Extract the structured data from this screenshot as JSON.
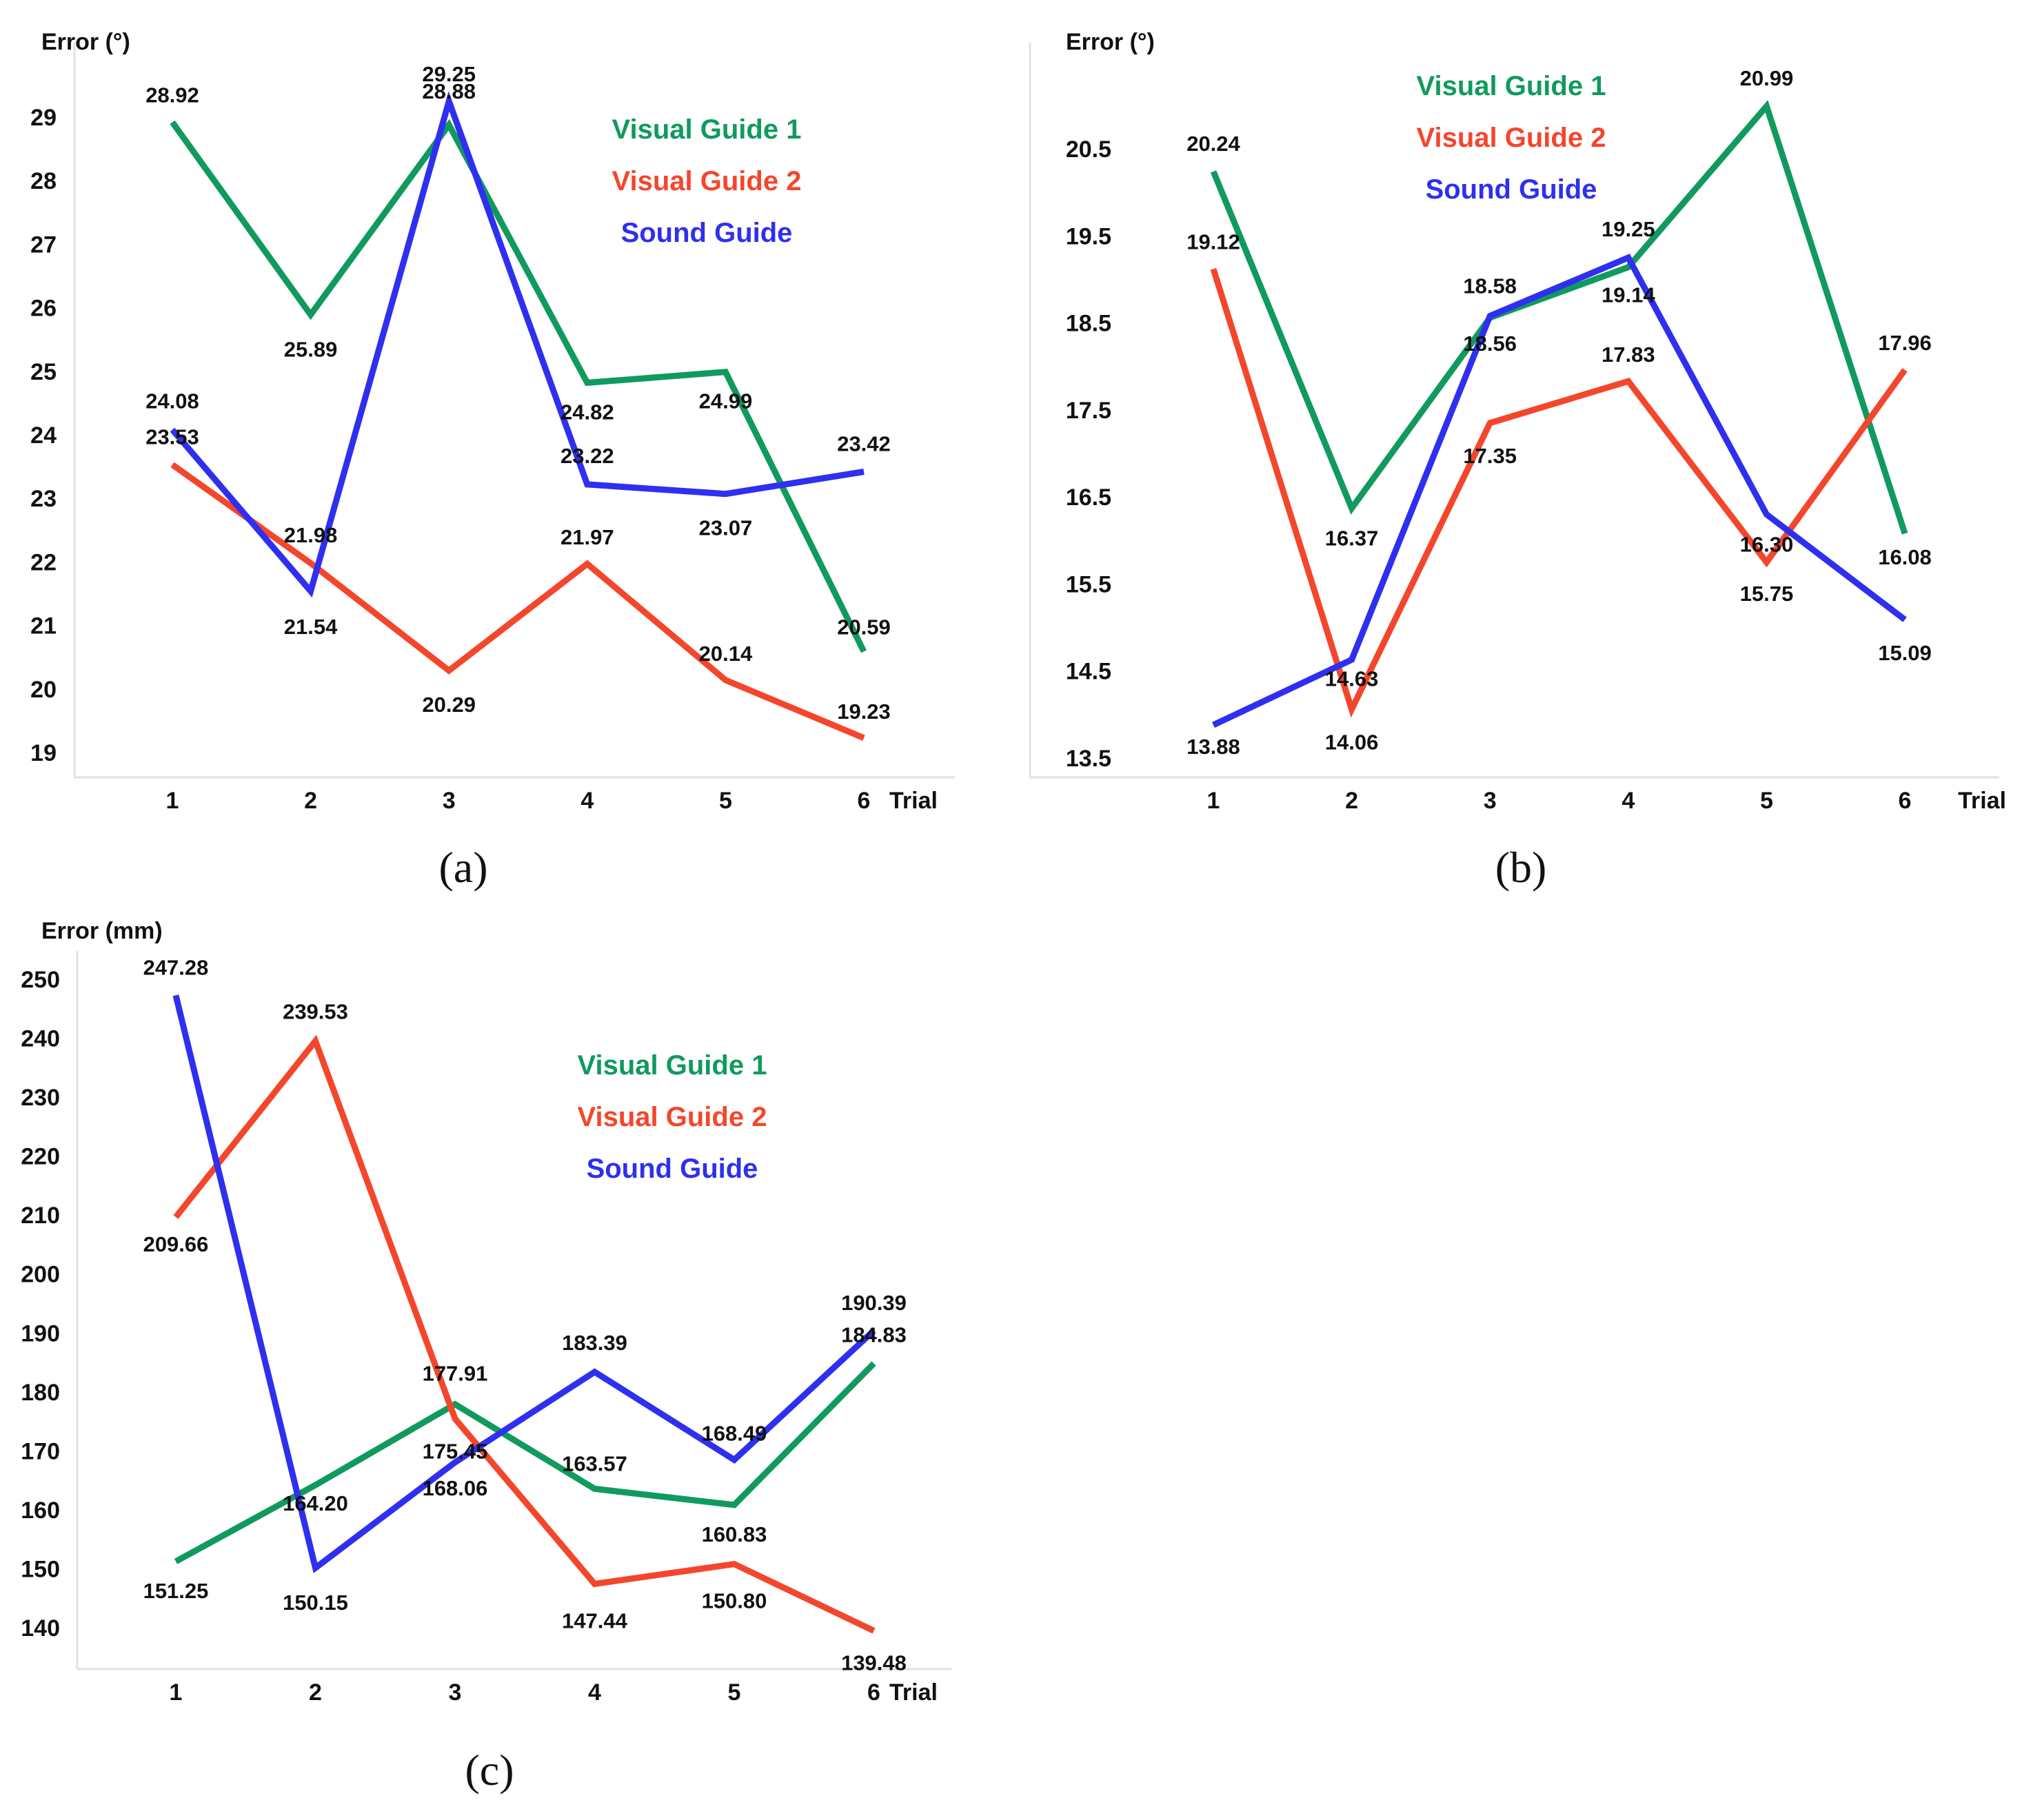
{
  "colors": {
    "visual_guide_1": "#109a5e",
    "visual_guide_2": "#f4462c",
    "sound_guide": "#2f2ff0"
  },
  "chart_data": [
    {
      "type": "line",
      "panel_label": "(a)",
      "ylabel": "Error (°)",
      "xlabel": "Trial",
      "x": [
        1,
        2,
        3,
        4,
        5,
        6
      ],
      "x_tick_labels": [
        "1",
        "2",
        "3",
        "4",
        "5",
        "6"
      ],
      "y_ticks": [
        19,
        20,
        21,
        22,
        23,
        24,
        25,
        26,
        27,
        28,
        29
      ],
      "y_tick_labels": [
        "19",
        "20",
        "21",
        "22",
        "23",
        "24",
        "25",
        "26",
        "27",
        "28",
        "29"
      ],
      "ylim": [
        18.6,
        30.15
      ],
      "legend_position": "top-right",
      "grid": false,
      "series": [
        {
          "name": "Visual Guide 1",
          "color_key": "visual_guide_1",
          "values": [
            28.92,
            25.89,
            28.88,
            24.82,
            24.99,
            20.59
          ],
          "labels": [
            "28.92",
            "25.89",
            "28.88",
            "24.82",
            "24.99",
            "20.59"
          ]
        },
        {
          "name": "Visual Guide 2",
          "color_key": "visual_guide_2",
          "values": [
            23.53,
            21.98,
            20.29,
            21.97,
            20.14,
            19.23
          ],
          "labels": [
            "23.53",
            "21.98",
            "20.29",
            "21.97",
            "20.14",
            "19.23"
          ]
        },
        {
          "name": "Sound Guide",
          "color_key": "sound_guide",
          "values": [
            24.08,
            21.54,
            29.25,
            23.22,
            23.07,
            23.42
          ],
          "labels": [
            "24.08",
            "21.54",
            "29.25",
            "23.22",
            "23.07",
            "23.42"
          ]
        }
      ]
    },
    {
      "type": "line",
      "panel_label": "(b)",
      "ylabel": "Error (°)",
      "xlabel": "Trial",
      "x": [
        1,
        2,
        3,
        4,
        5,
        6
      ],
      "x_tick_labels": [
        "1",
        "2",
        "3",
        "4",
        "5",
        "6"
      ],
      "y_ticks": [
        13.5,
        14.5,
        15.5,
        16.5,
        17.5,
        18.5,
        19.5,
        20.5
      ],
      "y_tick_labels": [
        "13.5",
        "14.5",
        "15.5",
        "16.5",
        "17.5",
        "18.5",
        "19.5",
        "20.5"
      ],
      "ylim": [
        13.3,
        21.55
      ],
      "legend_position": "top-center",
      "grid": false,
      "series": [
        {
          "name": "Visual Guide 1",
          "color_key": "visual_guide_1",
          "values": [
            20.24,
            16.37,
            18.56,
            19.14,
            20.99,
            16.08
          ],
          "labels": [
            "20.24",
            "16.37",
            "18.56",
            "19.14",
            "20.99",
            "16.08"
          ]
        },
        {
          "name": "Visual Guide 2",
          "color_key": "visual_guide_2",
          "values": [
            19.12,
            14.06,
            17.35,
            17.83,
            15.75,
            17.96
          ],
          "labels": [
            "19.12",
            "14.06",
            "17.35",
            "17.83",
            "15.75",
            "17.96"
          ]
        },
        {
          "name": "Sound Guide",
          "color_key": "sound_guide",
          "values": [
            13.88,
            14.63,
            18.58,
            19.25,
            16.3,
            15.09
          ],
          "labels": [
            "13.88",
            "14.63",
            "18.58",
            "19.25",
            "16.30",
            "15.09"
          ]
        }
      ]
    },
    {
      "type": "line",
      "panel_label": "(c)",
      "ylabel": "Error (mm)",
      "xlabel": "Trial",
      "x": [
        1,
        2,
        3,
        4,
        5,
        6
      ],
      "x_tick_labels": [
        "1",
        "2",
        "3",
        "4",
        "5",
        "6"
      ],
      "y_ticks": [
        140,
        150,
        160,
        170,
        180,
        190,
        200,
        210,
        220,
        230,
        240,
        250
      ],
      "y_tick_labels": [
        "140",
        "150",
        "160",
        "170",
        "180",
        "190",
        "200",
        "210",
        "220",
        "230",
        "240",
        "250"
      ],
      "ylim": [
        133,
        254
      ],
      "legend_position": "top-right",
      "grid": false,
      "series": [
        {
          "name": "Visual Guide 1",
          "color_key": "visual_guide_1",
          "values": [
            151.25,
            164.2,
            177.91,
            163.57,
            160.83,
            184.83
          ],
          "labels": [
            "151.25",
            "164.20",
            "177.91",
            "163.57",
            "160.83",
            "184.83"
          ]
        },
        {
          "name": "Visual Guide 2",
          "color_key": "visual_guide_2",
          "values": [
            209.66,
            239.53,
            175.45,
            147.44,
            150.8,
            139.48
          ],
          "labels": [
            "209.66",
            "239.53",
            "175.45",
            "147.44",
            "150.80",
            "139.48"
          ]
        },
        {
          "name": "Sound Guide",
          "color_key": "sound_guide",
          "values": [
            247.28,
            150.15,
            168.06,
            183.39,
            168.49,
            190.39
          ],
          "labels": [
            "247.28",
            "150.15",
            "168.06",
            "183.39",
            "168.49",
            "190.39"
          ]
        }
      ]
    }
  ]
}
